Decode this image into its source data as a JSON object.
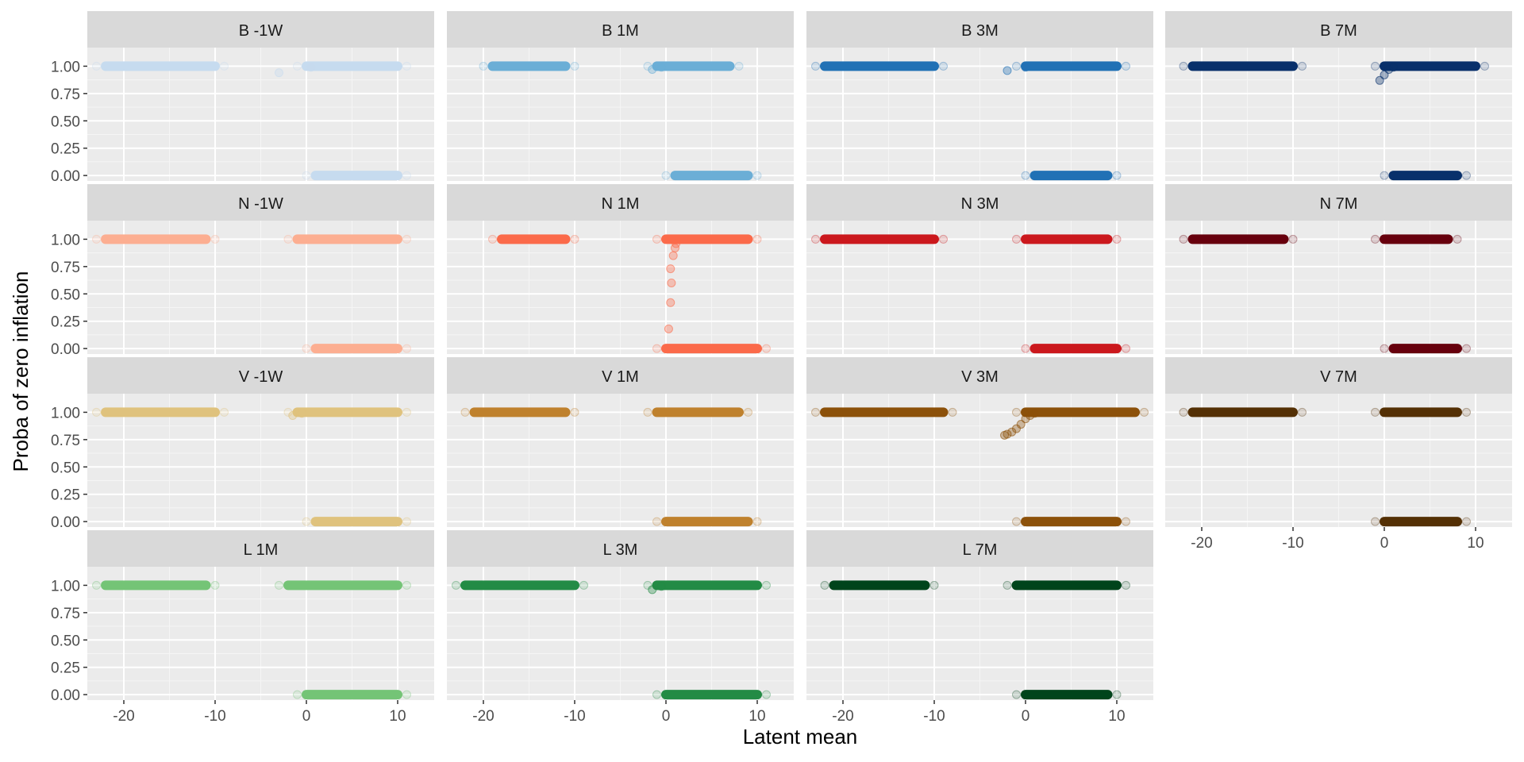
{
  "chart_data": {
    "type": "scatter",
    "xlabel": "Latent mean",
    "ylabel": "Proba of zero inflation",
    "xlim": [
      -24,
      14
    ],
    "ylim": [
      -0.05,
      1.17
    ],
    "x_ticks": [
      -20,
      -10,
      0,
      10
    ],
    "x_tick_labels": [
      "-20",
      "-10",
      "0",
      "10"
    ],
    "y_ticks": [
      0,
      0.25,
      0.5,
      0.75,
      1
    ],
    "y_tick_labels": [
      "0.00",
      "0.25",
      "0.50",
      "0.75",
      "1.00"
    ],
    "grid": true,
    "legend": "none",
    "panels": [
      {
        "label": "B -1W",
        "color": "#c6dbef",
        "blocks": [
          [
            -22,
            -10,
            1
          ],
          [
            0,
            10,
            1
          ],
          [
            1,
            10,
            0
          ]
        ],
        "ramp": [
          [
            -3,
            0.94
          ],
          [
            0.5,
            0.99
          ]
        ]
      },
      {
        "label": "B 1M",
        "color": "#6baed6",
        "blocks": [
          [
            -19,
            -11,
            1
          ],
          [
            -1,
            7,
            1
          ],
          [
            1,
            9,
            0
          ]
        ],
        "ramp": [
          [
            -1.5,
            0.97
          ],
          [
            -0.5,
            0.99
          ]
        ]
      },
      {
        "label": "B 3M",
        "color": "#2171b5",
        "blocks": [
          [
            -22,
            -10,
            1
          ],
          [
            0,
            10,
            1
          ],
          [
            1,
            9,
            0
          ]
        ],
        "ramp": [
          [
            -2,
            0.96
          ],
          [
            0,
            0.99
          ]
        ]
      },
      {
        "label": "B 7M",
        "color": "#08306b",
        "blocks": [
          [
            -21,
            -10,
            1
          ],
          [
            0,
            10,
            1
          ],
          [
            1,
            8,
            0
          ]
        ],
        "ramp": [
          [
            -0.5,
            0.87
          ],
          [
            0,
            0.92
          ],
          [
            0.5,
            0.97
          ],
          [
            1,
            0.99
          ]
        ]
      },
      {
        "label": "N -1W",
        "color": "#fcae91",
        "blocks": [
          [
            -22,
            -11,
            1
          ],
          [
            -1,
            10,
            1
          ],
          [
            1,
            10,
            0
          ]
        ],
        "ramp": []
      },
      {
        "label": "N 1M",
        "color": "#fb6a4a",
        "blocks": [
          [
            -18,
            -11,
            1
          ],
          [
            0,
            9,
            1
          ],
          [
            0,
            10,
            0
          ]
        ],
        "ramp": [
          [
            0.3,
            0.18
          ],
          [
            0.5,
            0.42
          ],
          [
            0.6,
            0.6
          ],
          [
            0.5,
            0.73
          ],
          [
            0.8,
            0.85
          ],
          [
            1,
            0.92
          ],
          [
            1.1,
            0.96
          ]
        ]
      },
      {
        "label": "N 3M",
        "color": "#cb181d",
        "blocks": [
          [
            -22,
            -10,
            1
          ],
          [
            0,
            9,
            1
          ],
          [
            1,
            10,
            0
          ]
        ],
        "ramp": []
      },
      {
        "label": "N 7M",
        "color": "#67000d",
        "blocks": [
          [
            -21,
            -11,
            1
          ],
          [
            0,
            7,
            1
          ],
          [
            1,
            8,
            0
          ]
        ],
        "ramp": []
      },
      {
        "label": "V -1W",
        "color": "#dfc27d",
        "blocks": [
          [
            -22,
            -10,
            1
          ],
          [
            -1,
            10,
            1
          ],
          [
            1,
            10,
            0
          ]
        ],
        "ramp": [
          [
            -1.5,
            0.97
          ],
          [
            -0.5,
            0.99
          ]
        ]
      },
      {
        "label": "V 1M",
        "color": "#bf812d",
        "blocks": [
          [
            -21,
            -11,
            1
          ],
          [
            -1,
            8,
            1
          ],
          [
            0,
            9,
            0
          ]
        ],
        "ramp": []
      },
      {
        "label": "V 3M",
        "color": "#8c510a",
        "blocks": [
          [
            -22,
            -9,
            1
          ],
          [
            0,
            12,
            1
          ],
          [
            0,
            10,
            0
          ]
        ],
        "ramp": [
          [
            -2.3,
            0.79
          ],
          [
            -2,
            0.8
          ],
          [
            -1.5,
            0.82
          ],
          [
            -1,
            0.85
          ],
          [
            -0.5,
            0.89
          ],
          [
            0,
            0.94
          ],
          [
            0.5,
            0.97
          ],
          [
            1,
            0.99
          ]
        ]
      },
      {
        "label": "V 7M",
        "color": "#543005",
        "blocks": [
          [
            -21,
            -10,
            1
          ],
          [
            0,
            8,
            1
          ],
          [
            0,
            8,
            0
          ]
        ],
        "ramp": []
      },
      {
        "label": "L 1M",
        "color": "#74c476",
        "blocks": [
          [
            -22,
            -11,
            1
          ],
          [
            -2,
            10,
            1
          ],
          [
            0,
            10,
            0
          ]
        ],
        "ramp": []
      },
      {
        "label": "L 3M",
        "color": "#238b45",
        "blocks": [
          [
            -22,
            -10,
            1
          ],
          [
            -1,
            10,
            1
          ],
          [
            0,
            10,
            0
          ]
        ],
        "ramp": [
          [
            -1.5,
            0.96
          ],
          [
            -0.5,
            0.99
          ]
        ]
      },
      {
        "label": "L 7M",
        "color": "#00441b",
        "blocks": [
          [
            -21,
            -11,
            1
          ],
          [
            -1,
            10,
            1
          ],
          [
            0,
            9,
            0
          ]
        ],
        "ramp": []
      }
    ]
  }
}
